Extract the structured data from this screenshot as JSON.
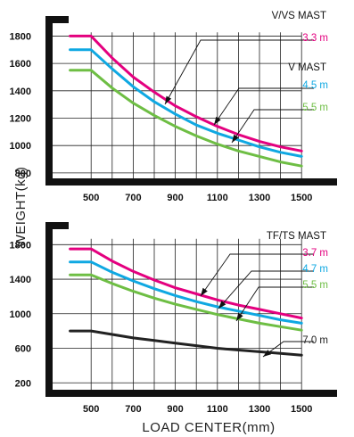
{
  "axis": {
    "ylabel": "WEIGHT(kg)",
    "xlabel": "LOAD CENTER(mm)"
  },
  "chart_data": [
    {
      "type": "line",
      "x_ticks": [
        "500",
        "700",
        "900",
        "1100",
        "1300",
        "1500"
      ],
      "y_ticks": [
        "800",
        "1000",
        "1200",
        "1400",
        "1600",
        "1800"
      ],
      "xlim": [
        300,
        1550
      ],
      "ylim": [
        760,
        1920
      ],
      "grid": true,
      "mast_titles": [
        "V/VS MAST",
        "V  MAST"
      ],
      "series": [
        {
          "name": "3.3 m",
          "color": "#e4007f",
          "x": [
            400,
            500,
            600,
            700,
            800,
            900,
            1000,
            1100,
            1200,
            1300,
            1400,
            1500
          ],
          "y": [
            1800,
            1800,
            1640,
            1500,
            1390,
            1290,
            1210,
            1140,
            1080,
            1030,
            990,
            960
          ]
        },
        {
          "name": "4.5 m",
          "color": "#0fa8e2",
          "x": [
            400,
            500,
            600,
            700,
            800,
            900,
            1000,
            1100,
            1200,
            1300,
            1400,
            1500
          ],
          "y": [
            1700,
            1700,
            1560,
            1430,
            1320,
            1230,
            1150,
            1090,
            1040,
            990,
            950,
            920
          ]
        },
        {
          "name": "5.5 m",
          "color": "#6ebe44",
          "x": [
            400,
            500,
            600,
            700,
            800,
            900,
            1000,
            1100,
            1200,
            1300,
            1400,
            1500
          ],
          "y": [
            1550,
            1550,
            1420,
            1310,
            1220,
            1140,
            1070,
            1010,
            960,
            920,
            880,
            850
          ]
        }
      ]
    },
    {
      "type": "line",
      "x_ticks": [
        "500",
        "700",
        "900",
        "1100",
        "1300",
        "1500"
      ],
      "y_ticks": [
        "200",
        "600",
        "1000",
        "1400",
        "1800"
      ],
      "xlim": [
        300,
        1550
      ],
      "ylim": [
        120,
        2020
      ],
      "grid": true,
      "mast_titles": [
        "TF/TS  MAST"
      ],
      "series": [
        {
          "name": "3.7 m",
          "color": "#e4007f",
          "x": [
            400,
            500,
            600,
            700,
            800,
            900,
            1000,
            1100,
            1200,
            1300,
            1400,
            1500
          ],
          "y": [
            1750,
            1750,
            1610,
            1490,
            1390,
            1300,
            1230,
            1160,
            1100,
            1050,
            1000,
            950
          ]
        },
        {
          "name": "4.7 m",
          "color": "#0fa8e2",
          "x": [
            400,
            500,
            600,
            700,
            800,
            900,
            1000,
            1100,
            1200,
            1300,
            1400,
            1500
          ],
          "y": [
            1600,
            1600,
            1480,
            1380,
            1290,
            1210,
            1140,
            1080,
            1030,
            980,
            930,
            890
          ]
        },
        {
          "name": "5.5 m",
          "color": "#6ebe44",
          "x": [
            400,
            500,
            600,
            700,
            800,
            900,
            1000,
            1100,
            1200,
            1300,
            1400,
            1500
          ],
          "y": [
            1450,
            1450,
            1350,
            1260,
            1180,
            1110,
            1050,
            990,
            940,
            890,
            850,
            810
          ]
        },
        {
          "name": "7.0 m",
          "color": "#222222",
          "x": [
            400,
            500,
            600,
            700,
            800,
            900,
            1000,
            1100,
            1200,
            1300,
            1400,
            1500
          ],
          "y": [
            800,
            800,
            760,
            720,
            690,
            660,
            630,
            600,
            580,
            560,
            540,
            520
          ]
        }
      ]
    }
  ]
}
